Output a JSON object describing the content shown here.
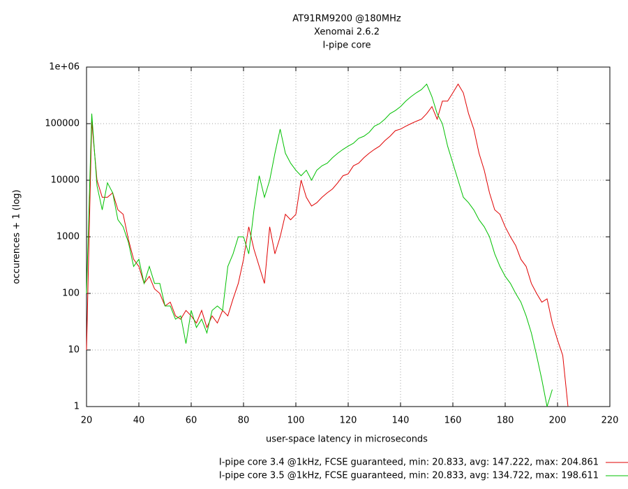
{
  "chart_data": {
    "type": "line",
    "title": "AT91RM9200 @180MHz",
    "subtitle": [
      "Xenomai 2.6.2",
      "I-pipe core"
    ],
    "x_label": "user-space latency in microseconds",
    "y_label": "occurences + 1 (log)",
    "log_y": true,
    "grid": true,
    "legend": "bottom-right",
    "xlim": [
      20,
      220
    ],
    "ylim": [
      1,
      1000000
    ],
    "xticks": [
      20,
      40,
      60,
      80,
      100,
      120,
      140,
      160,
      180,
      200,
      220
    ],
    "yticks": [
      1,
      10,
      100,
      1000,
      10000,
      100000,
      {
        "value": 1000000,
        "label": "1e+06"
      }
    ],
    "x": [
      20,
      22,
      24,
      26,
      28,
      30,
      32,
      34,
      36,
      38,
      40,
      42,
      44,
      46,
      48,
      50,
      52,
      54,
      56,
      58,
      60,
      62,
      64,
      66,
      68,
      70,
      72,
      74,
      76,
      78,
      80,
      82,
      84,
      86,
      88,
      90,
      92,
      94,
      96,
      98,
      100,
      102,
      104,
      106,
      108,
      110,
      112,
      114,
      116,
      118,
      120,
      122,
      124,
      126,
      128,
      130,
      132,
      134,
      136,
      138,
      140,
      142,
      144,
      146,
      148,
      150,
      152,
      154,
      156,
      158,
      160,
      162,
      164,
      166,
      168,
      170,
      172,
      174,
      176,
      178,
      180,
      182,
      184,
      186,
      188,
      190,
      192,
      194,
      196,
      198,
      200,
      202,
      204
    ],
    "series": [
      {
        "name": "I-pipe core 3.4 @1kHz, FCSE guaranteed, min: 20.833, avg: 147.222, max: 204.861",
        "color": "#e00000",
        "values": [
          10,
          110000,
          10000,
          5000,
          5000,
          6000,
          3000,
          2500,
          900,
          400,
          300,
          150,
          200,
          120,
          100,
          60,
          70,
          40,
          35,
          50,
          40,
          30,
          50,
          25,
          40,
          30,
          50,
          40,
          80,
          150,
          400,
          1500,
          600,
          300,
          150,
          1500,
          500,
          1000,
          2500,
          2000,
          2500,
          10000,
          5000,
          3500,
          4000,
          5000,
          6000,
          7000,
          9000,
          12000,
          13000,
          18000,
          20000,
          25000,
          30000,
          35000,
          40000,
          50000,
          60000,
          75000,
          80000,
          90000,
          100000,
          110000,
          120000,
          150000,
          200000,
          120000,
          250000,
          250000,
          350000,
          500000,
          350000,
          150000,
          80000,
          30000,
          15000,
          6000,
          3000,
          2500,
          1500,
          1000,
          700,
          400,
          300,
          150,
          100,
          70,
          80,
          30,
          15,
          8,
          1
        ]
      },
      {
        "name": "I-pipe core 3.5 @1kHz, FCSE guaranteed, min: 20.833, avg: 134.722, max: 198.611",
        "color": "#00c000",
        "values": [
          100,
          150000,
          8000,
          3000,
          9000,
          6000,
          2000,
          1500,
          800,
          300,
          400,
          150,
          300,
          150,
          150,
          60,
          60,
          35,
          40,
          13,
          50,
          25,
          35,
          20,
          50,
          60,
          50,
          300,
          500,
          1000,
          1000,
          500,
          3000,
          12000,
          5000,
          10000,
          30000,
          80000,
          30000,
          20000,
          15000,
          12000,
          15000,
          10000,
          15000,
          18000,
          20000,
          25000,
          30000,
          35000,
          40000,
          45000,
          55000,
          60000,
          70000,
          90000,
          100000,
          120000,
          150000,
          170000,
          200000,
          250000,
          300000,
          350000,
          400000,
          500000,
          300000,
          150000,
          100000,
          40000,
          20000,
          10000,
          5000,
          4000,
          3000,
          2000,
          1500,
          1000,
          500,
          300,
          200,
          150,
          100,
          70,
          40,
          20,
          8,
          3,
          1,
          2,
          null,
          null,
          null
        ]
      }
    ]
  }
}
